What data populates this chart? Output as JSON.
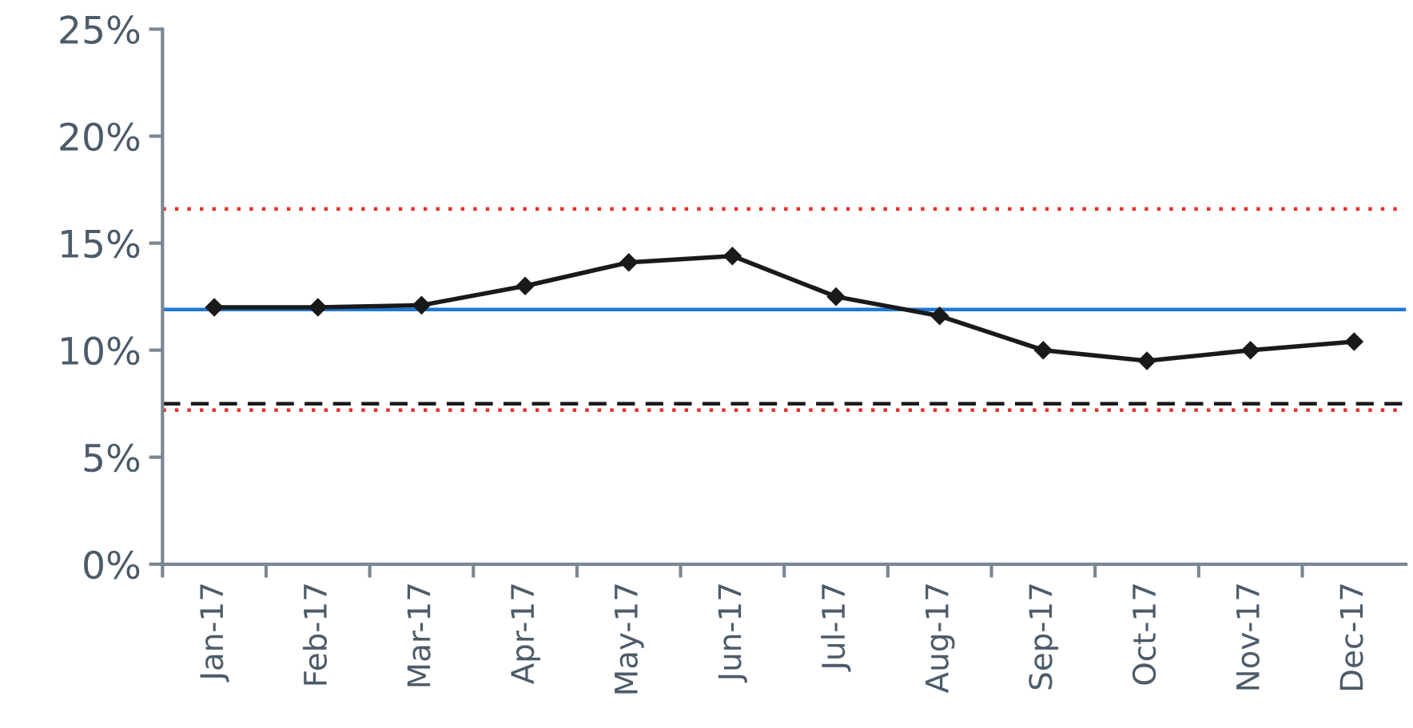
{
  "chart_data": {
    "type": "line",
    "categories": [
      "Jan-17",
      "Feb-17",
      "Mar-17",
      "Apr-17",
      "May-17",
      "Jun-17",
      "Jul-17",
      "Aug-17",
      "Sep-17",
      "Oct-17",
      "Nov-17",
      "Dec-17"
    ],
    "series": [
      {
        "color": "#1a1a1a",
        "values": [
          12.0,
          12.0,
          12.1,
          13.0,
          14.1,
          14.4,
          12.5,
          11.6,
          10.0,
          9.5,
          10.0,
          10.4
        ]
      }
    ],
    "marker": "diamond",
    "line_style": "solid",
    "ylim": [
      0,
      25
    ],
    "yticks": [
      {
        "value": 0,
        "label": "0%"
      },
      {
        "value": 5,
        "label": "5%"
      },
      {
        "value": 10,
        "label": "10%"
      },
      {
        "value": 15,
        "label": "15%"
      },
      {
        "value": 20,
        "label": "20%"
      },
      {
        "value": 25,
        "label": "25%"
      }
    ],
    "ref_lines": [
      {
        "axis": "y",
        "value": 16.6,
        "color": "#e8302a",
        "line_style": "dotted"
      },
      {
        "axis": "y",
        "value": 11.9,
        "color": "#1f78d1",
        "line_style": "solid"
      },
      {
        "axis": "y",
        "value": 7.5,
        "color": "#1a1a1a",
        "line_style": "dashed"
      },
      {
        "axis": "y",
        "value": 7.2,
        "color": "#e8302a",
        "line_style": "dotted"
      }
    ],
    "grid": false,
    "legend": false
  }
}
